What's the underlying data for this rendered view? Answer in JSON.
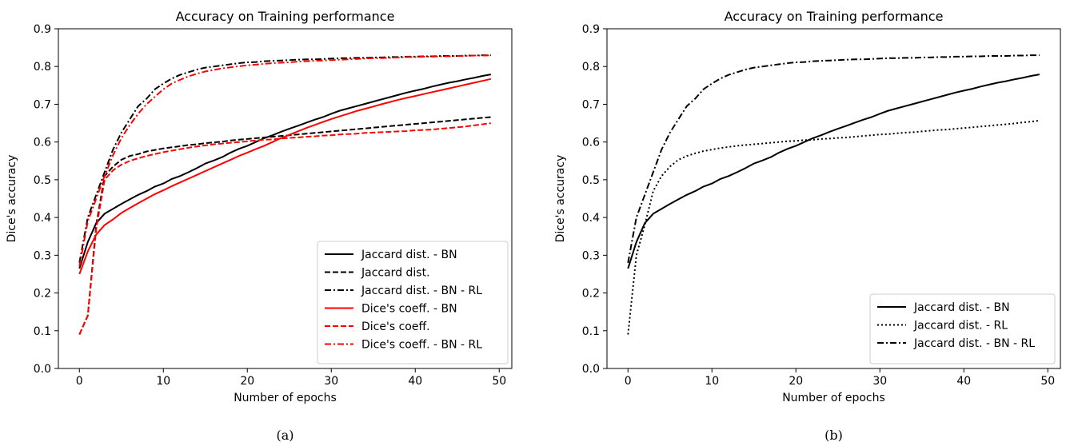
{
  "chart_data": [
    {
      "type": "line",
      "panel_label": "(a)",
      "title": "Accuracy on Training performance",
      "xlabel": "Number of epochs",
      "ylabel": "Dice's accuracy",
      "xlim": [
        -2.5,
        51.5
      ],
      "ylim": [
        0.0,
        0.9
      ],
      "xticks": [
        0,
        10,
        20,
        30,
        40,
        50
      ],
      "yticks": [
        0.0,
        0.1,
        0.2,
        0.3,
        0.4,
        0.5,
        0.6,
        0.7,
        0.8,
        0.9
      ],
      "grid": false,
      "legend_position": "lower-right",
      "x": [
        0,
        1,
        2,
        3,
        4,
        5,
        6,
        7,
        8,
        9,
        10,
        11,
        12,
        13,
        14,
        15,
        16,
        17,
        18,
        19,
        20,
        21,
        22,
        23,
        24,
        25,
        26,
        27,
        28,
        29,
        30,
        31,
        32,
        33,
        34,
        35,
        36,
        37,
        38,
        39,
        40,
        41,
        42,
        43,
        44,
        45,
        46,
        47,
        48,
        49
      ],
      "series": [
        {
          "name": "Jaccard dist. - BN",
          "color": "#000000",
          "dash": "solid",
          "values": [
            0.265,
            0.335,
            0.385,
            0.41,
            0.423,
            0.436,
            0.448,
            0.46,
            0.47,
            0.482,
            0.49,
            0.502,
            0.51,
            0.52,
            0.531,
            0.543,
            0.551,
            0.56,
            0.572,
            0.582,
            0.59,
            0.6,
            0.61,
            0.618,
            0.627,
            0.635,
            0.643,
            0.651,
            0.659,
            0.666,
            0.675,
            0.683,
            0.689,
            0.695,
            0.701,
            0.707,
            0.713,
            0.719,
            0.725,
            0.731,
            0.736,
            0.741,
            0.747,
            0.752,
            0.757,
            0.761,
            0.766,
            0.77,
            0.775,
            0.779
          ]
        },
        {
          "name": "Jaccard dist.",
          "color": "#000000",
          "dash": "dashed",
          "values": [
            0.09,
            0.14,
            0.38,
            0.51,
            0.535,
            0.553,
            0.563,
            0.568,
            0.575,
            0.579,
            0.583,
            0.586,
            0.589,
            0.592,
            0.594,
            0.597,
            0.599,
            0.601,
            0.604,
            0.606,
            0.608,
            0.61,
            0.612,
            0.614,
            0.616,
            0.618,
            0.62,
            0.622,
            0.624,
            0.626,
            0.628,
            0.63,
            0.632,
            0.634,
            0.636,
            0.638,
            0.64,
            0.642,
            0.644,
            0.646,
            0.648,
            0.65,
            0.652,
            0.654,
            0.656,
            0.658,
            0.66,
            0.662,
            0.664,
            0.666
          ]
        },
        {
          "name": "Jaccard dist. - BN - RL",
          "color": "#000000",
          "dash": "dashdot",
          "values": [
            0.28,
            0.4,
            0.46,
            0.52,
            0.58,
            0.625,
            0.66,
            0.695,
            0.715,
            0.74,
            0.755,
            0.768,
            0.778,
            0.785,
            0.792,
            0.797,
            0.8,
            0.803,
            0.806,
            0.809,
            0.811,
            0.812,
            0.814,
            0.815,
            0.816,
            0.817,
            0.818,
            0.819,
            0.819,
            0.82,
            0.821,
            0.822,
            0.822,
            0.823,
            0.823,
            0.824,
            0.824,
            0.825,
            0.825,
            0.826,
            0.826,
            0.827,
            0.827,
            0.828,
            0.828,
            0.828,
            0.829,
            0.829,
            0.83,
            0.83
          ]
        },
        {
          "name": "Dice's coeff. - BN",
          "color": "#ff0000",
          "dash": "solid",
          "values": [
            0.25,
            0.31,
            0.355,
            0.38,
            0.395,
            0.412,
            0.425,
            0.438,
            0.45,
            0.462,
            0.472,
            0.483,
            0.493,
            0.503,
            0.513,
            0.523,
            0.533,
            0.543,
            0.553,
            0.563,
            0.572,
            0.581,
            0.59,
            0.6,
            0.61,
            0.619,
            0.628,
            0.637,
            0.645,
            0.653,
            0.661,
            0.668,
            0.675,
            0.682,
            0.688,
            0.694,
            0.7,
            0.706,
            0.712,
            0.717,
            0.722,
            0.727,
            0.732,
            0.737,
            0.742,
            0.747,
            0.752,
            0.757,
            0.762,
            0.767
          ]
        },
        {
          "name": "Dice's coeff.",
          "color": "#ff0000",
          "dash": "dashed",
          "values": [
            0.09,
            0.14,
            0.37,
            0.5,
            0.525,
            0.54,
            0.55,
            0.557,
            0.563,
            0.568,
            0.573,
            0.577,
            0.581,
            0.585,
            0.588,
            0.591,
            0.594,
            0.596,
            0.598,
            0.6,
            0.602,
            0.604,
            0.606,
            0.607,
            0.609,
            0.611,
            0.612,
            0.614,
            0.615,
            0.617,
            0.618,
            0.62,
            0.621,
            0.622,
            0.624,
            0.625,
            0.626,
            0.627,
            0.628,
            0.629,
            0.631,
            0.632,
            0.633,
            0.635,
            0.637,
            0.639,
            0.641,
            0.644,
            0.647,
            0.65
          ]
        },
        {
          "name": "Dice's coeff. - BN - RL",
          "color": "#ff0000",
          "dash": "dashdot",
          "values": [
            0.27,
            0.39,
            0.45,
            0.51,
            0.565,
            0.61,
            0.645,
            0.675,
            0.7,
            0.72,
            0.74,
            0.755,
            0.765,
            0.774,
            0.781,
            0.787,
            0.791,
            0.795,
            0.798,
            0.801,
            0.803,
            0.805,
            0.807,
            0.809,
            0.81,
            0.811,
            0.813,
            0.814,
            0.815,
            0.816,
            0.817,
            0.818,
            0.819,
            0.82,
            0.821,
            0.822,
            0.822,
            0.823,
            0.824,
            0.825,
            0.825,
            0.826,
            0.826,
            0.827,
            0.827,
            0.828,
            0.828,
            0.829,
            0.829,
            0.83
          ]
        }
      ]
    },
    {
      "type": "line",
      "panel_label": "(b)",
      "title": "Accuracy on Training performance",
      "xlabel": "Number of epochs",
      "ylabel": "Dice's accuracy",
      "xlim": [
        -2.5,
        51.5
      ],
      "ylim": [
        0.0,
        0.9
      ],
      "xticks": [
        0,
        10,
        20,
        30,
        40,
        50
      ],
      "yticks": [
        0.0,
        0.1,
        0.2,
        0.3,
        0.4,
        0.5,
        0.6,
        0.7,
        0.8,
        0.9
      ],
      "grid": false,
      "legend_position": "lower-right",
      "x": [
        0,
        1,
        2,
        3,
        4,
        5,
        6,
        7,
        8,
        9,
        10,
        11,
        12,
        13,
        14,
        15,
        16,
        17,
        18,
        19,
        20,
        21,
        22,
        23,
        24,
        25,
        26,
        27,
        28,
        29,
        30,
        31,
        32,
        33,
        34,
        35,
        36,
        37,
        38,
        39,
        40,
        41,
        42,
        43,
        44,
        45,
        46,
        47,
        48,
        49
      ],
      "series": [
        {
          "name": "Jaccard dist. - BN",
          "color": "#000000",
          "dash": "solid",
          "values": [
            0.265,
            0.335,
            0.385,
            0.41,
            0.423,
            0.436,
            0.448,
            0.46,
            0.47,
            0.482,
            0.49,
            0.502,
            0.51,
            0.52,
            0.531,
            0.543,
            0.551,
            0.56,
            0.572,
            0.582,
            0.59,
            0.6,
            0.61,
            0.618,
            0.627,
            0.635,
            0.643,
            0.651,
            0.659,
            0.666,
            0.675,
            0.683,
            0.689,
            0.695,
            0.701,
            0.707,
            0.713,
            0.719,
            0.725,
            0.731,
            0.736,
            0.741,
            0.747,
            0.752,
            0.757,
            0.761,
            0.766,
            0.77,
            0.775,
            0.779
          ]
        },
        {
          "name": "Jaccard dist. - RL",
          "color": "#000000",
          "dash": "dotted",
          "values": [
            0.09,
            0.3,
            0.38,
            0.47,
            0.51,
            0.535,
            0.553,
            0.563,
            0.57,
            0.576,
            0.58,
            0.584,
            0.587,
            0.59,
            0.592,
            0.594,
            0.596,
            0.598,
            0.6,
            0.602,
            0.603,
            0.605,
            0.606,
            0.608,
            0.609,
            0.611,
            0.612,
            0.614,
            0.616,
            0.618,
            0.62,
            0.621,
            0.623,
            0.625,
            0.626,
            0.628,
            0.63,
            0.632,
            0.633,
            0.635,
            0.637,
            0.639,
            0.641,
            0.643,
            0.645,
            0.647,
            0.649,
            0.652,
            0.654,
            0.657
          ]
        },
        {
          "name": "Jaccard dist. - BN - RL",
          "color": "#000000",
          "dash": "dashdot",
          "values": [
            0.28,
            0.4,
            0.46,
            0.52,
            0.58,
            0.625,
            0.66,
            0.695,
            0.715,
            0.74,
            0.755,
            0.768,
            0.778,
            0.785,
            0.792,
            0.797,
            0.8,
            0.803,
            0.806,
            0.809,
            0.811,
            0.812,
            0.814,
            0.815,
            0.816,
            0.817,
            0.818,
            0.819,
            0.819,
            0.82,
            0.821,
            0.822,
            0.822,
            0.823,
            0.823,
            0.824,
            0.824,
            0.825,
            0.825,
            0.826,
            0.826,
            0.827,
            0.827,
            0.828,
            0.828,
            0.828,
            0.829,
            0.829,
            0.83,
            0.83
          ]
        }
      ]
    }
  ]
}
